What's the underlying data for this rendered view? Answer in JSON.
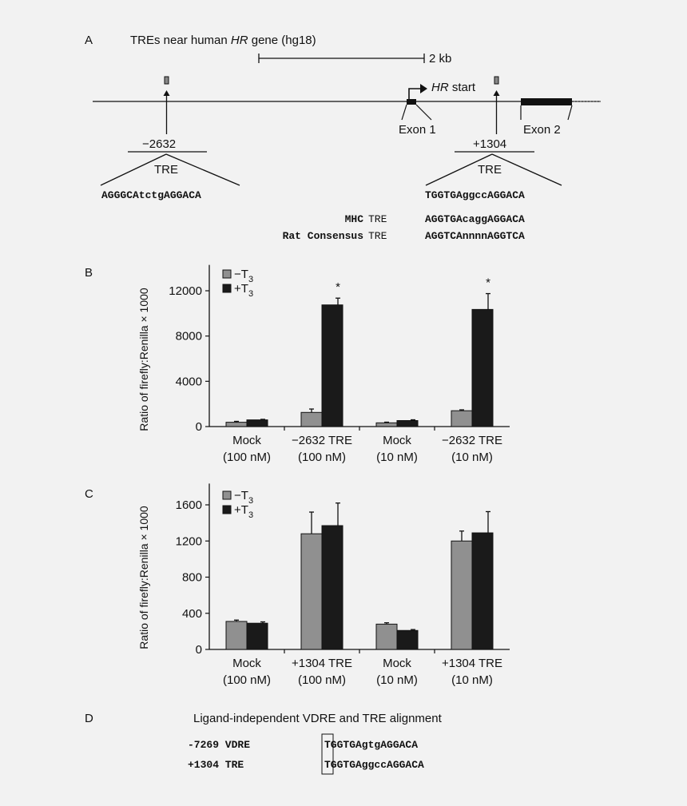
{
  "panel_a": {
    "letter": "A",
    "title": "TREs near human ",
    "title_gene": "HR",
    "title_rest": " gene (hg18)",
    "scale_label": "2 kb",
    "hr_start_gene": "HR",
    "hr_start_rest": " start",
    "exon1": "Exon 1",
    "exon2": "Exon 2",
    "left_pos": "−2632",
    "right_pos": "+1304",
    "tre": "TRE",
    "left_seq": "AGGGCAtctgAGGACA",
    "right_seq": "TGGTGAggccAGGACA",
    "mhc_name": "MHC",
    "mhc_tre": "TRE",
    "mhc_seq": "AGGTGAcaggAGGACA",
    "rat_name": "Rat Consensus",
    "rat_tre": "TRE",
    "rat_seq": "AGGTCAnnnnAGGTCA"
  },
  "panel_b_letter": "B",
  "panel_c_letter": "C",
  "legend": {
    "minus": "−T",
    "plus": "+T",
    "sub": "3"
  },
  "colors": {
    "minus_bar": "#909090",
    "plus_bar": "#1a1a1a",
    "background": "#f2f2f2"
  },
  "chart_data": [
    {
      "type": "bar",
      "panel": "B",
      "ylabel": "Ratio of firefly:Renilla × 1000",
      "ylim": [
        0,
        14000
      ],
      "yticks": [
        0,
        4000,
        8000,
        12000
      ],
      "categories": [
        [
          "Mock",
          "(100 nM)"
        ],
        [
          "−2632 TRE",
          "(100 nM)"
        ],
        [
          "Mock",
          "(10 nM)"
        ],
        [
          "−2632 TRE",
          "(10 nM)"
        ]
      ],
      "series": [
        {
          "name": "−T3",
          "values": [
            380,
            1250,
            330,
            1400
          ],
          "errors": [
            80,
            300,
            60,
            80
          ]
        },
        {
          "name": "+T3",
          "values": [
            590,
            10750,
            530,
            10350
          ],
          "errors": [
            50,
            600,
            70,
            1400
          ]
        }
      ],
      "annotations": [
        "",
        "*",
        "",
        "*"
      ],
      "legend": "top-left"
    },
    {
      "type": "bar",
      "panel": "C",
      "ylabel": "Ratio of firefly:Renilla × 1000",
      "ylim": [
        0,
        1800
      ],
      "yticks": [
        0,
        400,
        800,
        1200,
        1600
      ],
      "categories": [
        [
          "Mock",
          "(100 nM)"
        ],
        [
          "+1304 TRE",
          "(100 nM)"
        ],
        [
          "Mock",
          "(10 nM)"
        ],
        [
          "+1304 TRE",
          "(10 nM)"
        ]
      ],
      "series": [
        {
          "name": "−T3",
          "values": [
            310,
            1280,
            280,
            1200
          ],
          "errors": [
            15,
            240,
            15,
            110
          ]
        },
        {
          "name": "+T3",
          "values": [
            290,
            1370,
            210,
            1290
          ],
          "errors": [
            15,
            250,
            10,
            235
          ]
        }
      ],
      "annotations": [
        "",
        "",
        "",
        ""
      ],
      "legend": "top-left"
    }
  ],
  "panel_d": {
    "letter": "D",
    "title": "Ligand-independent VDRE and TRE alignment",
    "row1_label": "-7269 VDRE",
    "row1_seq": "TGGTGAgtgAGGACA",
    "row2_label": "+1304 TRE",
    "row2_seq": "TGGTGAggccAGGACA"
  }
}
